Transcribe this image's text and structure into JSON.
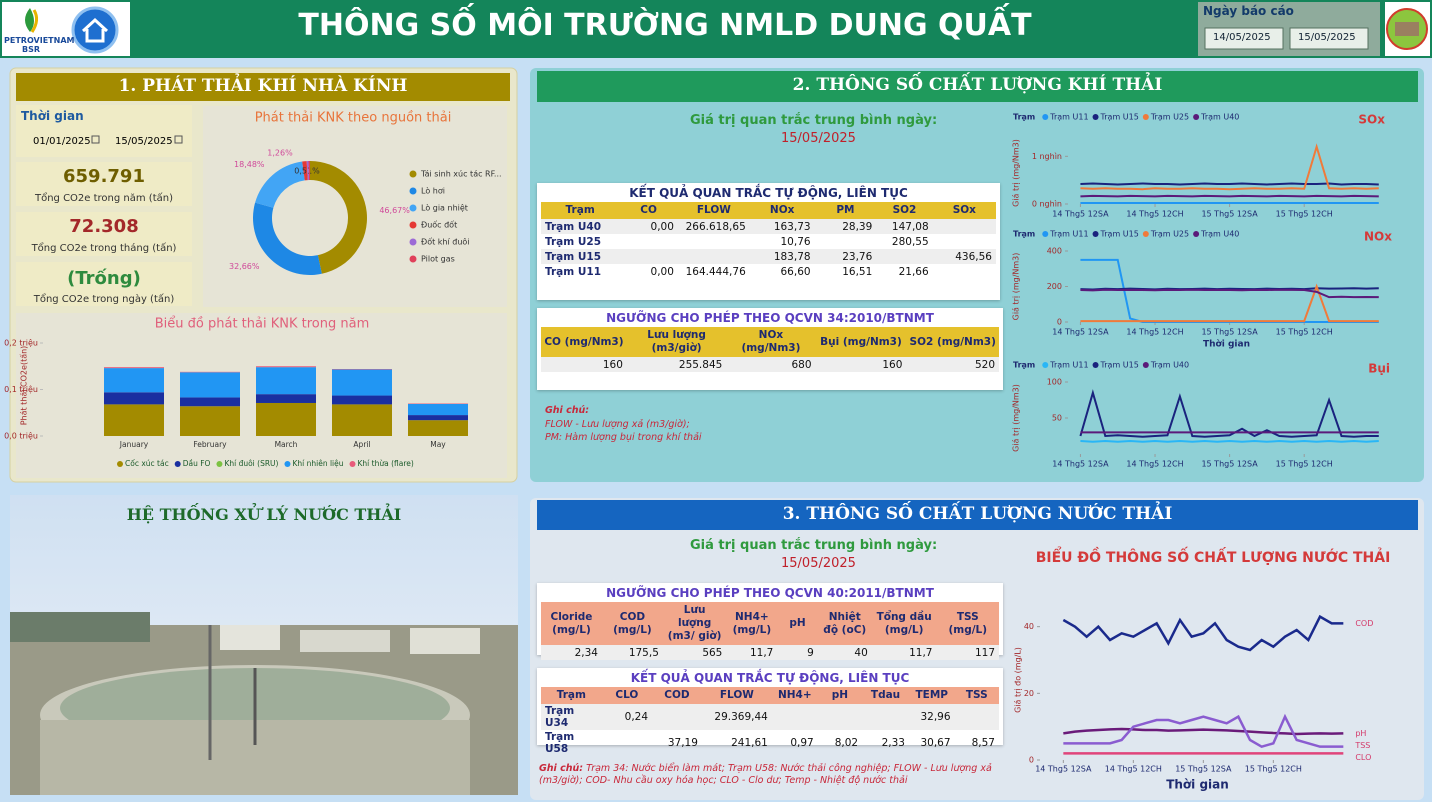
{
  "header": {
    "logo_line1": "PETROVIETNAM",
    "logo_line2": "BSR",
    "title": "THÔNG SỐ MÔI TRƯỜNG NMLD DUNG QUẤT",
    "report_date_label": "Ngày báo cáo",
    "date_from": "14/05/2025",
    "date_to": "15/05/2025"
  },
  "ghg": {
    "title": "1. PHÁT THẢI KHÍ NHÀ KÍNH",
    "time_label": "Thời gian",
    "date_from": "01/01/2025",
    "date_to": "15/05/2025",
    "kpis": [
      {
        "value": "659.791",
        "label": "Tổng CO2e trong năm (tấn)"
      },
      {
        "value": "72.308",
        "label": "Tổng CO2e trong tháng (tấn)"
      },
      {
        "value": "(Trống)",
        "label": "Tổng CO2e trong ngày (tấn)"
      }
    ]
  },
  "photo": {
    "title": "HỆ THỐNG XỬ LÝ NƯỚC THẢI"
  },
  "gas": {
    "title": "2. THÔNG SỐ CHẤT LƯỢNG KHÍ THẢI",
    "avg_label": "Giá trị quan trắc trung bình ngày:",
    "avg_date": "15/05/2025",
    "results": {
      "title": "KẾT QUẢ QUAN TRẮC TỰ ĐỘNG, LIÊN TỤC",
      "columns": [
        "Trạm",
        "CO",
        "FLOW",
        "NOx",
        "PM",
        "SO2",
        "SOx"
      ],
      "rows": [
        [
          "Trạm U40",
          "0,00",
          "266.618,65",
          "163,73",
          "28,39",
          "147,08",
          null
        ],
        [
          "Trạm U25",
          null,
          null,
          "10,76",
          null,
          "280,55",
          null
        ],
        [
          "Trạm U15",
          null,
          null,
          "183,78",
          "23,76",
          null,
          "436,56"
        ],
        [
          "Trạm U11",
          "0,00",
          "164.444,76",
          "66,60",
          "16,51",
          "21,66",
          null
        ]
      ]
    },
    "limits": {
      "title": "NGƯỠNG CHO PHÉP THEO QCVN 34:2010/BTNMT",
      "columns": [
        "CO (mg/Nm3)",
        "Lưu lượng (m3/giờ)",
        "NOx (mg/Nm3)",
        "Bụi (mg/Nm3)",
        "SO2 (mg/Nm3)"
      ],
      "rows": [
        [
          "160",
          "255.845",
          "680",
          "160",
          "520"
        ]
      ]
    },
    "note_label": "Ghi chú:",
    "notes": [
      "FLOW - Lưu lượng xả (m3/giờ);",
      "PM: Hàm lượng bụi trong khí thải"
    ]
  },
  "water": {
    "title": "3. THÔNG SỐ CHẤT LƯỢNG NƯỚC THẢI",
    "avg_label": "Giá trị quan trắc trung bình ngày:",
    "avg_date": "15/05/2025",
    "limits": {
      "title": "NGƯỠNG CHO PHÉP THEO QCVN 40:2011/BTNMT",
      "columns": [
        "Cloride (mg/L)",
        "COD (mg/L)",
        "Lưu lượng (m3/ giờ)",
        "NH4+ (mg/L)",
        "pH",
        "Nhiệt độ (oC)",
        "Tổng dầu (mg/L)",
        "TSS (mg/L)"
      ],
      "rows": [
        [
          "2,34",
          "175,5",
          "565",
          "11,7",
          "9",
          "40",
          "11,7",
          "117"
        ]
      ]
    },
    "results": {
      "title": "KẾT QUẢ QUAN TRẮC TỰ ĐỘNG, LIÊN TỤC",
      "columns": [
        "Trạm",
        "CLO",
        "COD",
        "FLOW",
        "NH4+",
        "pH",
        "Tdau",
        "TEMP",
        "TSS"
      ],
      "rows": [
        [
          "Trạm U34",
          "0,24",
          null,
          "29.369,44",
          null,
          null,
          null,
          "32,96",
          null
        ],
        [
          "Trạm U58",
          null,
          "37,19",
          "241,61",
          "0,97",
          "8,02",
          "2,33",
          "30,67",
          "8,57"
        ]
      ]
    },
    "note_label": "Ghi chú:",
    "note": "Trạm 34: Nước biển làm mát; Trạm U58: Nước thải công nghiệp; FLOW - Lưu lượng xả (m3/giờ); COD- Nhu cầu oxy hóa học; CLO - Clo dư; Temp - Nhiệt độ nước thải"
  },
  "chart_data": [
    {
      "type": "donut",
      "title": "Phát thải KNK theo nguồn thải",
      "categories": [
        "Tái sinh xúc tác RF...",
        "Lò hơi",
        "Lò gia nhiệt",
        "Đuốc đốt",
        "Đốt khí đuôi",
        "Pilot gas"
      ],
      "values": [
        46.67,
        32.66,
        18.48,
        1.26,
        0.51,
        0.42
      ],
      "value_labels": [
        "46,67%",
        "32,66%",
        "18,48%",
        "1,26%",
        "0,51%",
        null
      ],
      "colors": [
        "#a38b00",
        "#1e88e5",
        "#42a5f5",
        "#e53935",
        "#9c6ad6",
        "#e0405a"
      ]
    },
    {
      "type": "bar",
      "stacked": true,
      "title": "Biểu đồ phát thải KNK trong năm",
      "y_label": "Phát thải CO2e(tấn)",
      "categories": [
        "January",
        "February",
        "March",
        "April",
        "May"
      ],
      "ylim": [
        0,
        200000
      ],
      "yticks": [
        {
          "value": 0,
          "label": "0,0 triệu"
        },
        {
          "value": 100000,
          "label": "0,1 triệu"
        },
        {
          "value": 200000,
          "label": "0,2 triệu"
        }
      ],
      "series": [
        {
          "name": "Cốc xúc tác",
          "color": "#a38b00",
          "values": [
            68000,
            64000,
            71000,
            68000,
            34000
          ]
        },
        {
          "name": "Dầu FO",
          "color": "#1a2fa0",
          "values": [
            26000,
            19000,
            19000,
            19000,
            11000
          ]
        },
        {
          "name": "Khí đuôi (SRU)",
          "color": "#7cc242",
          "values": [
            0,
            0,
            0,
            0,
            0
          ]
        },
        {
          "name": "Khí nhiên liệu",
          "color": "#2196f3",
          "values": [
            52000,
            54000,
            58000,
            56000,
            24000
          ]
        },
        {
          "name": "Khí thừa (flare)",
          "color": "#e85a7a",
          "values": [
            2000,
            1000,
            2000,
            1000,
            1000
          ]
        }
      ]
    },
    {
      "type": "line",
      "title": "SOx",
      "legend": "top-left",
      "legend_title": "Trạm",
      "y_label": "Giá trị (mg/Nm3)",
      "x": [
        0,
        2,
        4,
        6,
        8,
        10,
        12,
        14,
        16,
        18,
        20,
        22,
        24,
        26,
        28,
        30,
        32,
        34,
        36,
        38,
        40,
        42,
        44,
        46,
        48
      ],
      "xlim": [
        -2,
        49
      ],
      "xticks": [
        {
          "value": 0,
          "label": "14 Thg5 12SA"
        },
        {
          "value": 12,
          "label": "14 Thg5 12CH"
        },
        {
          "value": 24,
          "label": "15 Thg5 12SA"
        },
        {
          "value": 36,
          "label": "15 Thg5 12CH"
        }
      ],
      "ylim": [
        0,
        1300
      ],
      "yticks": [
        {
          "value": 0,
          "label": "0 nghìn"
        },
        {
          "value": 1000,
          "label": "1 nghìn"
        }
      ],
      "series": [
        {
          "name": "Trạm U11",
          "color": "#2196f3",
          "values": [
            20,
            20,
            20,
            20,
            20,
            20,
            20,
            20,
            20,
            20,
            20,
            20,
            20,
            20,
            20,
            20,
            20,
            20,
            20,
            20,
            20,
            20,
            20,
            20,
            20
          ]
        },
        {
          "name": "Trạm U15",
          "color": "#1a237e",
          "values": [
            420,
            430,
            420,
            410,
            420,
            430,
            420,
            420,
            410,
            420,
            430,
            420,
            420,
            430,
            420,
            410,
            420,
            430,
            420,
            420,
            430,
            410,
            420,
            420,
            410
          ]
        },
        {
          "name": "Trạm U25",
          "color": "#f07a3a",
          "values": [
            330,
            320,
            330,
            320,
            320,
            310,
            330,
            320,
            320,
            330,
            320,
            320,
            310,
            320,
            330,
            320,
            320,
            330,
            320,
            1200,
            330,
            320,
            330,
            320,
            330
          ]
        },
        {
          "name": "Trạm U40",
          "color": "#5b1a7a",
          "values": [
            160,
            170,
            165,
            160,
            170,
            165,
            160,
            170,
            165,
            160,
            170,
            165,
            160,
            170,
            165,
            160,
            170,
            165,
            160,
            170,
            165,
            160,
            170,
            165,
            160
          ]
        }
      ]
    },
    {
      "type": "line",
      "title": "NOx",
      "legend": "top-left",
      "legend_title": "Trạm",
      "y_label": "Giá trị (mg/Nm3)",
      "x_label": "Thời gian",
      "x": [
        0,
        2,
        4,
        6,
        8,
        10,
        12,
        14,
        16,
        18,
        20,
        22,
        24,
        26,
        28,
        30,
        32,
        34,
        36,
        38,
        40,
        42,
        44,
        46,
        48
      ],
      "xlim": [
        -2,
        49
      ],
      "xticks": [
        {
          "value": 0,
          "label": "14 Thg5 12SA"
        },
        {
          "value": 12,
          "label": "14 Thg5 12CH"
        },
        {
          "value": 24,
          "label": "15 Thg5 12SA"
        },
        {
          "value": 36,
          "label": "15 Thg5 12CH"
        }
      ],
      "ylim": [
        0,
        400
      ],
      "yticks": [
        0,
        200,
        400
      ],
      "series": [
        {
          "name": "Trạm U11",
          "color": "#2196f3",
          "values": [
            350,
            350,
            350,
            350,
            20,
            0,
            0,
            0,
            0,
            0,
            0,
            0,
            0,
            0,
            0,
            0,
            0,
            0,
            0,
            0,
            0,
            0,
            0,
            0,
            0
          ]
        },
        {
          "name": "Trạm U15",
          "color": "#1a237e",
          "values": [
            185,
            183,
            187,
            185,
            188,
            186,
            184,
            187,
            185,
            186,
            188,
            185,
            187,
            186,
            185,
            188,
            186,
            187,
            185,
            190,
            188,
            189,
            190,
            188,
            190
          ]
        },
        {
          "name": "Trạm U25",
          "color": "#f07a3a",
          "values": [
            5,
            5,
            5,
            5,
            5,
            5,
            5,
            5,
            5,
            5,
            5,
            5,
            5,
            5,
            5,
            5,
            5,
            5,
            5,
            200,
            5,
            5,
            5,
            5,
            5
          ]
        },
        {
          "name": "Trạm U40",
          "color": "#5b1a7a",
          "values": [
            180,
            178,
            182,
            180,
            181,
            180,
            179,
            181,
            180,
            182,
            180,
            181,
            180,
            179,
            181,
            180,
            182,
            181,
            180,
            170,
            140,
            142,
            140,
            141,
            140
          ]
        }
      ]
    },
    {
      "type": "line",
      "title": "Bụi",
      "legend": "top-left",
      "legend_title": "Trạm",
      "y_label": "Giá trị (mg/Nm3)",
      "x": [
        0,
        2,
        4,
        6,
        8,
        10,
        12,
        14,
        16,
        18,
        20,
        22,
        24,
        26,
        28,
        30,
        32,
        34,
        36,
        38,
        40,
        42,
        44,
        46,
        48
      ],
      "xlim": [
        -2,
        49
      ],
      "xticks": [
        {
          "value": 0,
          "label": "14 Thg5 12SA"
        },
        {
          "value": 12,
          "label": "14 Thg5 12CH"
        },
        {
          "value": 24,
          "label": "15 Thg5 12SA"
        },
        {
          "value": 36,
          "label": "15 Thg5 12CH"
        }
      ],
      "ylim": [
        0,
        100
      ],
      "yticks": [
        50,
        100
      ],
      "series": [
        {
          "name": "Trạm U11",
          "color": "#29b6f6",
          "values": [
            18,
            17,
            18,
            17,
            18,
            17,
            18,
            17,
            18,
            17,
            18,
            17,
            18,
            17,
            18,
            17,
            18,
            17,
            18,
            17,
            18,
            17,
            18,
            17,
            18
          ]
        },
        {
          "name": "Trạm U15",
          "color": "#1a237e",
          "values": [
            25,
            85,
            25,
            26,
            25,
            24,
            25,
            26,
            80,
            25,
            24,
            25,
            26,
            35,
            25,
            33,
            25,
            24,
            25,
            26,
            75,
            25,
            24,
            25,
            25
          ]
        },
        {
          "name": "Trạm U40",
          "color": "#5b1a7a",
          "values": [
            30,
            30,
            30,
            30,
            30,
            30,
            30,
            30,
            30,
            30,
            30,
            30,
            30,
            30,
            30,
            30,
            30,
            30,
            30,
            30,
            30,
            30,
            30,
            30,
            30
          ]
        }
      ]
    },
    {
      "type": "line",
      "title": "BIỂU ĐỒ THÔNG SỐ CHẤT LƯỢNG NƯỚC THẢI",
      "legend": "line-end",
      "y_label": "Giá trị đo (mg/L)",
      "x_label": "Thời gian",
      "x": [
        0,
        2,
        4,
        6,
        8,
        10,
        12,
        14,
        16,
        18,
        20,
        22,
        24,
        26,
        28,
        30,
        32,
        34,
        36,
        38,
        40,
        42,
        44,
        46,
        48
      ],
      "xlim": [
        -4,
        50
      ],
      "xticks": [
        {
          "value": 0,
          "label": "14 Thg5 12SA"
        },
        {
          "value": 12,
          "label": "14 Thg5 12CH"
        },
        {
          "value": 24,
          "label": "15 Thg5 12SA"
        },
        {
          "value": 36,
          "label": "15 Thg5 12CH"
        }
      ],
      "ylim": [
        0,
        48
      ],
      "yticks": [
        0,
        20,
        40
      ],
      "series": [
        {
          "name": "COD",
          "color": "#1a2a8c",
          "values": [
            42,
            40,
            37,
            40,
            36,
            38,
            37,
            39,
            41,
            35,
            42,
            37,
            38,
            41,
            36,
            34,
            33,
            36,
            34,
            37,
            39,
            36,
            43,
            41,
            41
          ]
        },
        {
          "name": "pH",
          "color": "#6a1b7a",
          "values": [
            8,
            8.5,
            8.8,
            9,
            9.2,
            9.3,
            9.2,
            9,
            9,
            8.8,
            8.9,
            9,
            9.1,
            9,
            8.9,
            8.7,
            8.5,
            8.3,
            8.1,
            8,
            7.8,
            7.9,
            8,
            7.9,
            8
          ]
        },
        {
          "name": "TSS",
          "color": "#8a5cd0",
          "values": [
            5,
            5,
            5,
            5,
            5,
            6,
            10,
            11,
            12,
            12,
            11,
            12,
            13,
            12,
            11,
            13,
            6,
            4,
            5,
            13,
            6,
            5,
            4,
            4,
            4
          ]
        },
        {
          "name": "CLO",
          "color": "#e0457b",
          "values": [
            2,
            2,
            2,
            2,
            2,
            2,
            2,
            2,
            2,
            2,
            2,
            2,
            2,
            2,
            2,
            2,
            2,
            2,
            2,
            2,
            2,
            2,
            2,
            2,
            2
          ]
        }
      ]
    }
  ]
}
